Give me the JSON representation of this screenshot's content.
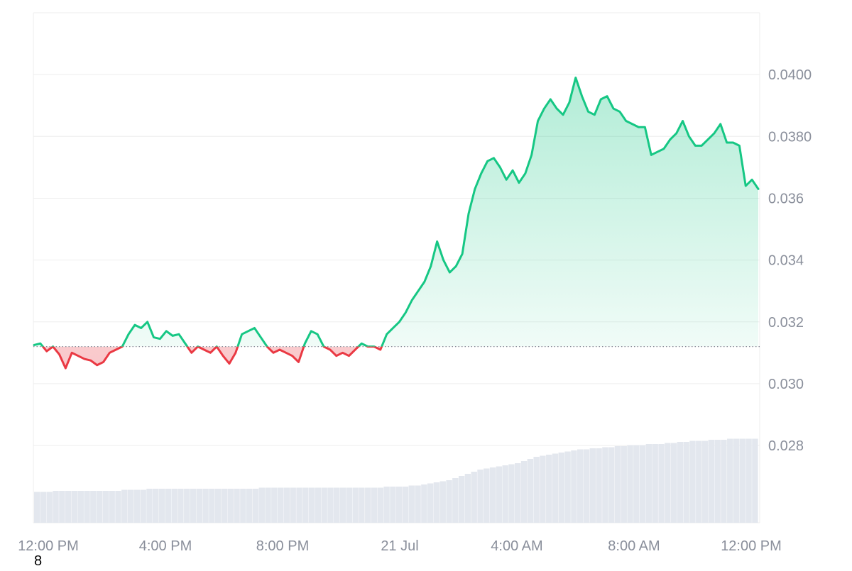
{
  "chart_data": {
    "type": "area",
    "title": "",
    "xlabel": "",
    "ylabel": "",
    "ylim": [
      0.0255,
      0.042
    ],
    "baseline": 0.0312,
    "x_tick_labels": [
      "12:00 PM",
      "4:00 PM",
      "8:00 PM",
      "21 Jul",
      "4:00 AM",
      "8:00 AM",
      "12:00 PM"
    ],
    "y_tick_labels": [
      "0.0400",
      "0.0380",
      "0.036",
      "0.034",
      "0.032",
      "0.030",
      "0.028"
    ],
    "y_tick_values": [
      0.04,
      0.038,
      0.036,
      0.034,
      0.032,
      0.03,
      0.028
    ],
    "series": [
      {
        "values": [
          0.03125,
          0.0313,
          0.03105,
          0.0312,
          0.03095,
          0.0305,
          0.031,
          0.0309,
          0.0308,
          0.03075,
          0.0306,
          0.0307,
          0.031,
          0.0311,
          0.0312,
          0.0316,
          0.0319,
          0.0318,
          0.032,
          0.0315,
          0.03145,
          0.0317,
          0.03155,
          0.0316,
          0.0313,
          0.031,
          0.0312,
          0.0311,
          0.031,
          0.0312,
          0.0309,
          0.03065,
          0.031,
          0.0316,
          0.0317,
          0.0318,
          0.0315,
          0.0312,
          0.031,
          0.0311,
          0.031,
          0.0309,
          0.0307,
          0.0313,
          0.0317,
          0.0316,
          0.0312,
          0.0311,
          0.0309,
          0.031,
          0.0309,
          0.0311,
          0.0313,
          0.0312,
          0.0312,
          0.0311,
          0.0316,
          0.0318,
          0.032,
          0.0323,
          0.0327,
          0.033,
          0.0333,
          0.0338,
          0.0346,
          0.034,
          0.0336,
          0.0338,
          0.0342,
          0.0355,
          0.0363,
          0.0368,
          0.0372,
          0.0373,
          0.037,
          0.0366,
          0.0369,
          0.0365,
          0.0368,
          0.0374,
          0.0385,
          0.0389,
          0.0392,
          0.0389,
          0.0387,
          0.0391,
          0.0399,
          0.0393,
          0.0388,
          0.0387,
          0.0392,
          0.0393,
          0.0389,
          0.0388,
          0.0385,
          0.0384,
          0.0383,
          0.0383,
          0.0374,
          0.0375,
          0.0376,
          0.0379,
          0.0381,
          0.0385,
          0.038,
          0.0377,
          0.0377,
          0.0379,
          0.0381,
          0.0384,
          0.0378,
          0.0378,
          0.0377,
          0.0364,
          0.0366,
          0.0363
        ]
      }
    ],
    "volume_relative": [
      0.29,
      0.29,
      0.29,
      0.3,
      0.3,
      0.3,
      0.3,
      0.3,
      0.3,
      0.3,
      0.3,
      0.3,
      0.3,
      0.3,
      0.31,
      0.31,
      0.31,
      0.31,
      0.32,
      0.32,
      0.32,
      0.32,
      0.32,
      0.32,
      0.32,
      0.32,
      0.32,
      0.32,
      0.32,
      0.32,
      0.32,
      0.32,
      0.32,
      0.32,
      0.32,
      0.32,
      0.33,
      0.33,
      0.33,
      0.33,
      0.33,
      0.33,
      0.33,
      0.33,
      0.33,
      0.33,
      0.33,
      0.33,
      0.33,
      0.33,
      0.33,
      0.33,
      0.33,
      0.33,
      0.33,
      0.33,
      0.34,
      0.34,
      0.34,
      0.34,
      0.35,
      0.35,
      0.36,
      0.37,
      0.38,
      0.39,
      0.4,
      0.42,
      0.44,
      0.46,
      0.48,
      0.5,
      0.51,
      0.52,
      0.53,
      0.54,
      0.55,
      0.56,
      0.58,
      0.6,
      0.62,
      0.63,
      0.64,
      0.65,
      0.66,
      0.67,
      0.68,
      0.69,
      0.69,
      0.7,
      0.7,
      0.71,
      0.71,
      0.72,
      0.72,
      0.73,
      0.73,
      0.73,
      0.74,
      0.74,
      0.74,
      0.75,
      0.75,
      0.76,
      0.76,
      0.77,
      0.77,
      0.77,
      0.78,
      0.78,
      0.78,
      0.79,
      0.79,
      0.79,
      0.79,
      0.79
    ],
    "grid": true,
    "colors": {
      "up_line": "#16c784",
      "down_line": "#ea3943",
      "up_fill": "#16c784",
      "down_fill": "#ea3943",
      "grid": "#eeeeee",
      "axis_text": "#8a8f9b",
      "volume": "#e3e7ee",
      "baseline": "#8a8f9b"
    }
  },
  "stray_label": "8"
}
